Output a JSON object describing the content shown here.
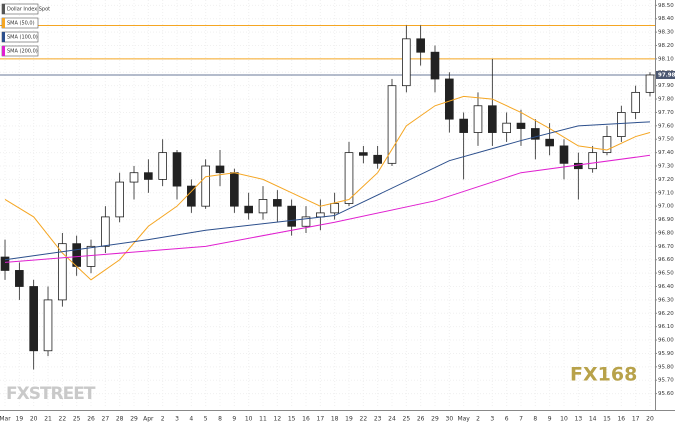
{
  "chart_data": {
    "type": "candlestick",
    "legend": [
      "Dollar Index Spot"
    ],
    "legend_color": "#555555",
    "categories": [
      "Mar",
      "19",
      "20",
      "21",
      "22",
      "25",
      "26",
      "27",
      "28",
      "29",
      "Apr",
      "2",
      "3",
      "4",
      "5",
      "8",
      "9",
      "10",
      "11",
      "12",
      "15",
      "16",
      "17",
      "18",
      "19",
      "22",
      "23",
      "24",
      "25",
      "26",
      "29",
      "30",
      "May",
      "2",
      "3",
      "6",
      "7",
      "8",
      "9",
      "10",
      "13",
      "14",
      "15",
      "16",
      "17",
      "20"
    ],
    "open": [
      96.62,
      96.52,
      96.4,
      95.92,
      96.3,
      96.72,
      96.55,
      96.7,
      96.92,
      97.18,
      97.25,
      97.2,
      97.4,
      97.15,
      97.0,
      97.3,
      97.25,
      97.0,
      96.95,
      97.05,
      97.0,
      96.85,
      96.92,
      96.95,
      97.02,
      97.4,
      97.38,
      97.32,
      97.9,
      98.25,
      98.15,
      97.95,
      97.65,
      97.55,
      97.75,
      97.55,
      97.62,
      97.58,
      97.5,
      97.45,
      97.32,
      97.28,
      97.4,
      97.52,
      97.7,
      97.85
    ],
    "high": [
      96.75,
      96.58,
      96.45,
      96.4,
      96.8,
      96.78,
      96.75,
      97.0,
      97.25,
      97.3,
      97.35,
      97.5,
      97.42,
      97.2,
      97.35,
      97.42,
      97.28,
      97.1,
      97.15,
      97.12,
      97.05,
      97.0,
      97.05,
      97.1,
      97.48,
      97.45,
      97.45,
      97.95,
      98.35,
      98.35,
      98.2,
      98.0,
      97.7,
      97.85,
      98.1,
      97.7,
      97.72,
      97.65,
      97.62,
      97.5,
      97.4,
      97.45,
      97.6,
      97.75,
      97.9,
      98.0
    ],
    "low": [
      96.45,
      96.3,
      95.78,
      95.88,
      96.25,
      96.48,
      96.5,
      96.65,
      96.88,
      97.05,
      97.1,
      97.15,
      97.05,
      96.95,
      96.98,
      97.15,
      96.95,
      96.9,
      96.9,
      96.88,
      96.78,
      96.8,
      96.82,
      96.9,
      97.0,
      97.32,
      97.28,
      97.3,
      97.85,
      98.05,
      97.85,
      97.55,
      97.2,
      97.45,
      97.45,
      97.48,
      97.45,
      97.35,
      97.38,
      97.2,
      97.05,
      97.25,
      97.38,
      97.48,
      97.65,
      97.82
    ],
    "close": [
      96.52,
      96.4,
      95.92,
      96.3,
      96.72,
      96.55,
      96.7,
      96.92,
      97.18,
      97.25,
      97.2,
      97.4,
      97.15,
      97.0,
      97.3,
      97.25,
      97.0,
      96.95,
      97.05,
      97.0,
      96.85,
      96.92,
      96.95,
      97.02,
      97.4,
      97.38,
      97.32,
      97.9,
      98.25,
      98.15,
      97.95,
      97.65,
      97.55,
      97.75,
      97.55,
      97.62,
      97.58,
      97.5,
      97.45,
      97.32,
      97.28,
      97.4,
      97.52,
      97.7,
      97.85,
      97.98
    ],
    "series": [
      {
        "name": "SMA (50,0)",
        "color": "#f5a623",
        "x": [
          0,
          2,
          4,
          6,
          8,
          10,
          12,
          14,
          16,
          18,
          20,
          22,
          24,
          26,
          28,
          30,
          32,
          34,
          36,
          38,
          40,
          42,
          44,
          45
        ],
        "values": [
          97.05,
          96.92,
          96.65,
          96.45,
          96.6,
          96.85,
          97.0,
          97.22,
          97.25,
          97.2,
          97.1,
          97.0,
          97.05,
          97.25,
          97.6,
          97.75,
          97.82,
          97.8,
          97.7,
          97.58,
          97.45,
          97.42,
          97.52,
          97.55
        ]
      },
      {
        "name": "SMA (100,0)",
        "color": "#2c4f8c",
        "x": [
          0,
          10,
          14,
          23,
          31,
          36,
          40,
          45
        ],
        "values": [
          96.6,
          96.75,
          96.82,
          96.93,
          97.34,
          97.49,
          97.6,
          97.63
        ]
      },
      {
        "name": "SMA (200,0)",
        "color": "#e020d0",
        "x": [
          0,
          14,
          23,
          30,
          36,
          45
        ],
        "values": [
          96.58,
          96.7,
          96.88,
          97.04,
          97.25,
          97.38
        ]
      }
    ],
    "levels": [
      {
        "value": 98.35,
        "color": "#f5a623"
      },
      {
        "value": 98.1,
        "color": "#f5a623"
      },
      {
        "value": 97.98,
        "color": "#6a7a9a"
      }
    ],
    "ylim": [
      95.5,
      98.54
    ],
    "yticks": [
      {
        "value": 98.5,
        "label": "98.50"
      },
      {
        "value": 98.4,
        "label": "98.40"
      },
      {
        "value": 98.3,
        "label": "98.30"
      },
      {
        "value": 98.2,
        "label": "98.20"
      },
      {
        "value": 98.1,
        "label": "98.10"
      },
      {
        "value": 98.0,
        "label": "98.00"
      },
      {
        "value": 97.9,
        "label": "97.90"
      },
      {
        "value": 97.8,
        "label": "97.80"
      },
      {
        "value": 97.7,
        "label": "97.70"
      },
      {
        "value": 97.6,
        "label": "97.60"
      },
      {
        "value": 97.5,
        "label": "97.50"
      },
      {
        "value": 97.4,
        "label": "97.40"
      },
      {
        "value": 97.3,
        "label": "97.30"
      },
      {
        "value": 97.2,
        "label": "97.20"
      },
      {
        "value": 97.1,
        "label": "97.10"
      },
      {
        "value": 97.0,
        "label": "97.00"
      },
      {
        "value": 96.9,
        "label": "96.90"
      },
      {
        "value": 96.8,
        "label": "96.80"
      },
      {
        "value": 96.7,
        "label": "96.70"
      },
      {
        "value": 96.6,
        "label": "96.60"
      },
      {
        "value": 96.5,
        "label": "96.50"
      },
      {
        "value": 96.4,
        "label": "96.40"
      },
      {
        "value": 96.3,
        "label": "96.30"
      },
      {
        "value": 96.2,
        "label": "96.20"
      },
      {
        "value": 96.1,
        "label": "96.10"
      },
      {
        "value": 96.0,
        "label": "96.00"
      },
      {
        "value": 95.9,
        "label": "95.90"
      },
      {
        "value": 95.8,
        "label": "95.80"
      },
      {
        "value": 95.7,
        "label": "95.70"
      },
      {
        "value": 95.6,
        "label": "95.60"
      }
    ],
    "grid": true,
    "watermarks": [
      "FXSTREET",
      "FX168"
    ]
  }
}
